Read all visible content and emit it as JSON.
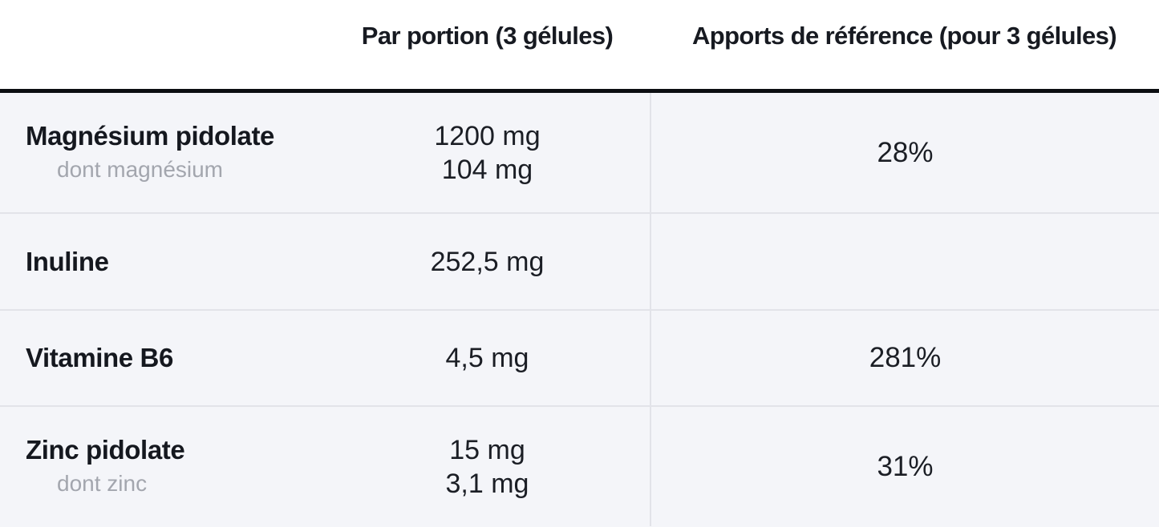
{
  "table": {
    "columns": {
      "name": "",
      "portion": "Par portion (3 gélules)",
      "reference": "Apports de référence (pour 3 gélules)"
    },
    "rows": [
      {
        "name": "Magnésium pidolate",
        "subname": "dont magnésium",
        "portion": [
          "1200 mg",
          "104 mg"
        ],
        "reference": "28%"
      },
      {
        "name": "Inuline",
        "subname": "",
        "portion": [
          "252,5 mg"
        ],
        "reference": ""
      },
      {
        "name": "Vitamine B6",
        "subname": "",
        "portion": [
          "4,5 mg"
        ],
        "reference": "281%"
      },
      {
        "name": "Zinc pidolate",
        "subname": "dont zinc",
        "portion": [
          "15 mg",
          "3,1 mg"
        ],
        "reference": "31%"
      }
    ],
    "colors": {
      "header_background": "#ffffff",
      "body_background": "#f4f5f9",
      "divider_bar": "#0c0e12",
      "grid_line": "#e2e3e9",
      "text_dark": "#15181f",
      "text_gray": "#a3a6ae"
    }
  }
}
